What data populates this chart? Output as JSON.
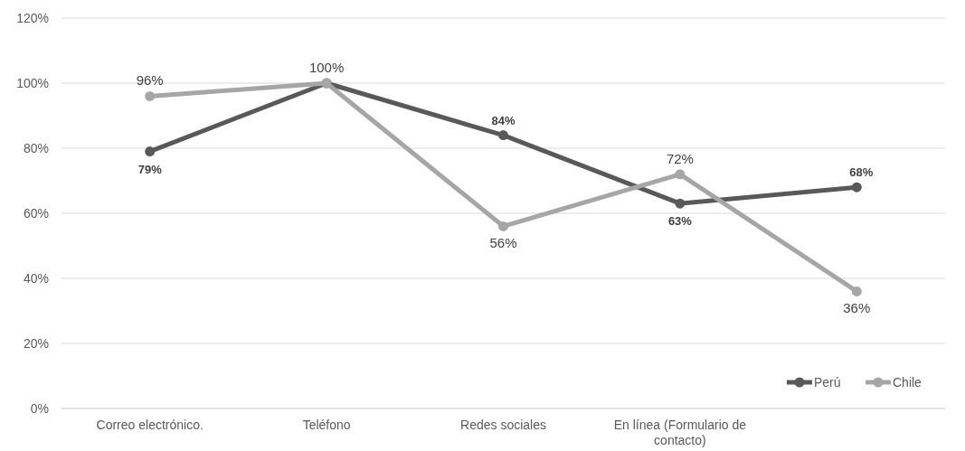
{
  "chart_data": {
    "type": "line",
    "categories": [
      "Correo electrónico.",
      "Teléfono",
      "Redes sociales",
      "En línea (Formulario de contacto)",
      null
    ],
    "series": [
      {
        "name": "Perú",
        "color": "#595959",
        "values": [
          79,
          100,
          84,
          63,
          68
        ],
        "value_labels": [
          "79%",
          null,
          "84%",
          "63%",
          "68%"
        ]
      },
      {
        "name": "Chile",
        "color": "#a6a6a6",
        "values": [
          96,
          100,
          56,
          72,
          36
        ],
        "value_labels": [
          "96%",
          "100%",
          "56%",
          "72%",
          "36%"
        ]
      }
    ],
    "ylim": [
      0,
      120
    ],
    "yticks": [
      {
        "value": 0,
        "label": "0%"
      },
      {
        "value": 20,
        "label": "20%"
      },
      {
        "value": 40,
        "label": "40%"
      },
      {
        "value": 60,
        "label": "60%"
      },
      {
        "value": 80,
        "label": "80%"
      },
      {
        "value": 100,
        "label": "100%"
      },
      {
        "value": 120,
        "label": "120%"
      }
    ],
    "grid": "y",
    "legend": "bottom right",
    "marker": "circle",
    "line_style": "solid"
  }
}
